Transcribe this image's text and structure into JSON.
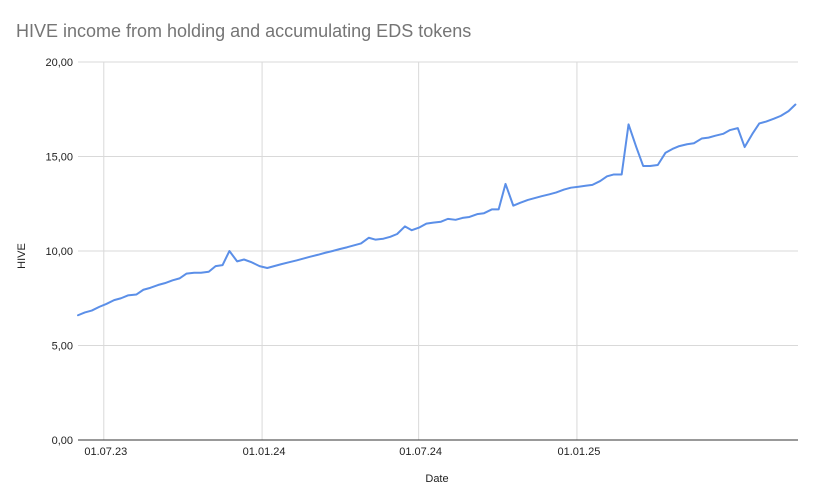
{
  "chart_data": {
    "type": "line",
    "title": "HIVE income from holding and accumulating EDS tokens",
    "xlabel": "Date",
    "ylabel": "HIVE",
    "ylim": [
      0,
      20
    ],
    "y_ticks": [
      0,
      5,
      10,
      15,
      20
    ],
    "y_tick_labels": [
      "0,00",
      "5,00",
      "10,00",
      "15,00",
      "20,00"
    ],
    "x_ticks": [
      "2023-07-01",
      "2024-01-01",
      "2024-07-01",
      "2025-01-01"
    ],
    "x_tick_labels": [
      "01.07.23",
      "01.01.24",
      "01.07.24",
      "01.01.25"
    ],
    "xlim": [
      "2023-06-01",
      "2025-09-15"
    ],
    "grid": true,
    "legend": "none",
    "colors": {
      "line": "#5b8fe8"
    },
    "series": [
      {
        "x": [
          "2023-06-01",
          "2023-06-09",
          "2023-06-17",
          "2023-06-26",
          "2023-07-04",
          "2023-07-13",
          "2023-07-21",
          "2023-07-29",
          "2023-08-08",
          "2023-08-16",
          "2023-08-24",
          "2023-09-02",
          "2023-09-10",
          "2023-09-19",
          "2023-09-27",
          "2023-10-05",
          "2023-10-14",
          "2023-10-22",
          "2023-10-31",
          "2023-11-08",
          "2023-11-16",
          "2023-11-24",
          "2023-12-03",
          "2023-12-11",
          "2023-12-20",
          "2023-12-29",
          "2024-01-07",
          "2024-01-15",
          "2024-01-23",
          "2024-02-01",
          "2024-02-10",
          "2024-02-18",
          "2024-02-26",
          "2024-03-06",
          "2024-03-14",
          "2024-03-23",
          "2024-03-31",
          "2024-04-09",
          "2024-04-17",
          "2024-04-25",
          "2024-05-04",
          "2024-05-12",
          "2024-05-21",
          "2024-05-29",
          "2024-06-06",
          "2024-06-15",
          "2024-06-23",
          "2024-07-02",
          "2024-07-10",
          "2024-07-18",
          "2024-07-27",
          "2024-08-04",
          "2024-08-13",
          "2024-08-21",
          "2024-08-29",
          "2024-09-07",
          "2024-09-15",
          "2024-09-24",
          "2024-10-02",
          "2024-10-10",
          "2024-10-19",
          "2024-10-27",
          "2024-11-05",
          "2024-11-13",
          "2024-11-21",
          "2024-11-30",
          "2024-12-08",
          "2024-12-17",
          "2024-12-25",
          "2025-01-03",
          "2025-01-11",
          "2025-01-19",
          "2025-01-28",
          "2025-02-05",
          "2025-02-13",
          "2025-02-22",
          "2025-03-02",
          "2025-03-11",
          "2025-03-19",
          "2025-03-27",
          "2025-04-05",
          "2025-04-14",
          "2025-04-22",
          "2025-04-30",
          "2025-05-09",
          "2025-05-17",
          "2025-05-26",
          "2025-06-03",
          "2025-06-11",
          "2025-06-20",
          "2025-06-28",
          "2025-07-07",
          "2025-07-15",
          "2025-07-24",
          "2025-08-01",
          "2025-08-09",
          "2025-08-18",
          "2025-08-26",
          "2025-09-04",
          "2025-09-12"
        ],
        "values": [
          6.6,
          6.75,
          6.85,
          7.05,
          7.2,
          7.4,
          7.5,
          7.65,
          7.7,
          7.95,
          8.05,
          8.2,
          8.3,
          8.45,
          8.55,
          8.8,
          8.85,
          8.85,
          8.9,
          9.2,
          9.25,
          10.0,
          9.45,
          9.55,
          9.4,
          9.2,
          9.1,
          9.2,
          9.3,
          9.4,
          9.5,
          9.6,
          9.7,
          9.8,
          9.9,
          10.0,
          10.1,
          10.2,
          10.3,
          10.4,
          10.7,
          10.6,
          10.65,
          10.75,
          10.9,
          11.3,
          11.1,
          11.25,
          11.45,
          11.5,
          11.55,
          11.7,
          11.65,
          11.75,
          11.8,
          11.95,
          12.0,
          12.2,
          12.2,
          13.55,
          12.4,
          12.55,
          12.7,
          12.8,
          12.9,
          13.0,
          13.1,
          13.25,
          13.35,
          13.4,
          13.45,
          13.5,
          13.7,
          13.95,
          14.05,
          14.05,
          16.7,
          15.5,
          14.5,
          14.5,
          14.55,
          15.2,
          15.4,
          15.55,
          15.65,
          15.7,
          15.95,
          16.0,
          16.1,
          16.2,
          16.4,
          16.5,
          15.5,
          16.2,
          16.75,
          16.85,
          17.0,
          17.15,
          17.4,
          17.75
        ]
      }
    ]
  }
}
